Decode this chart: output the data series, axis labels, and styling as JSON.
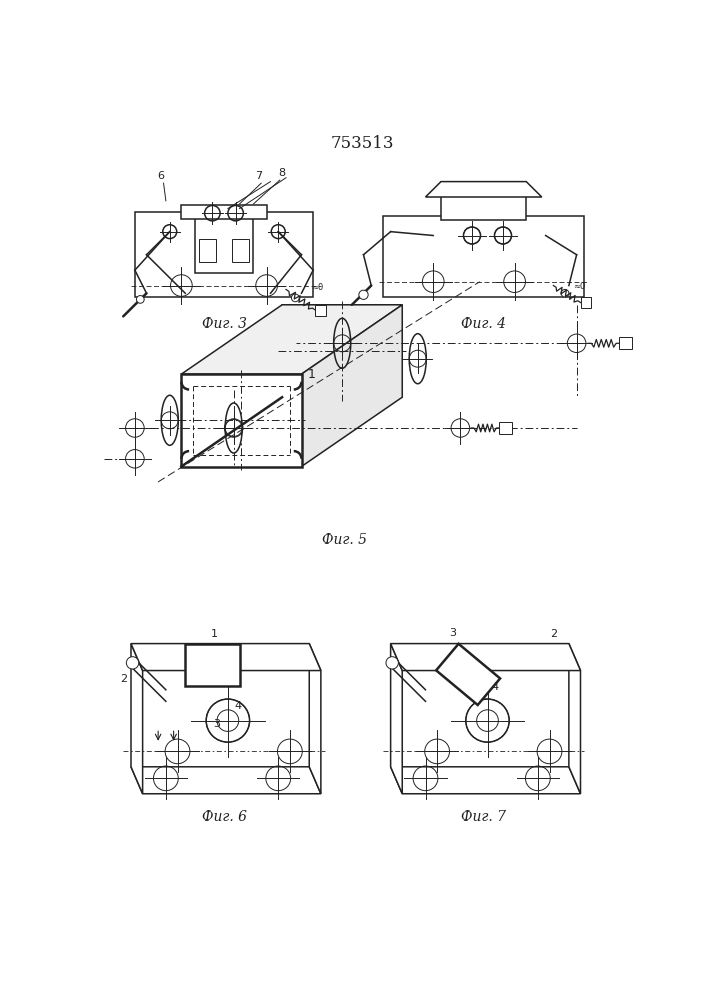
{
  "title": "753513",
  "bg_color": "#ffffff",
  "line_color": "#222222",
  "fig3_label": "Фиг. 3",
  "fig4_label": "Фиг. 4",
  "fig5_label": "Фиг. 5",
  "fig6_label": "Фиг. 6",
  "fig7_label": "Фиг. 7",
  "label_fontsize": 10,
  "note_fontsize": 8
}
